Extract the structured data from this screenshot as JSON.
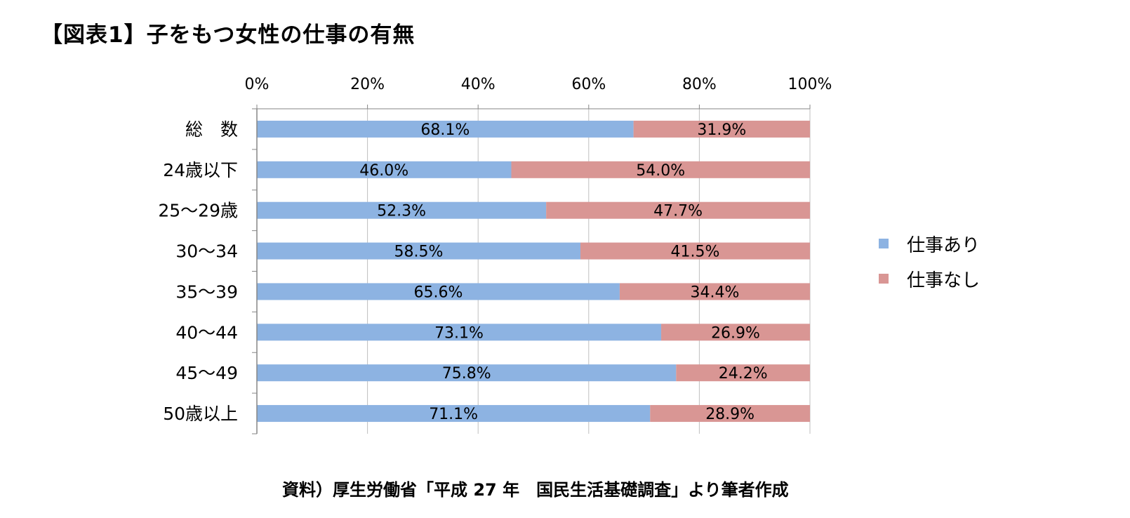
{
  "title": "【図表1】子をもつ女性の仕事の有無",
  "source": "資料）厚生労働省「平成 27 年　国民生活基礎調査」より筆者作成",
  "colors": {
    "with_job": "#8db3e2",
    "without_job": "#d99694",
    "axis": "#868686",
    "grid": "#bfbfbf"
  },
  "chart_data": {
    "type": "bar",
    "orientation": "horizontal",
    "stacked": "percent",
    "categories": [
      "総　数",
      "24歳以下",
      "25～29歳",
      "30～34",
      "35～39",
      "40～44",
      "45～49",
      "50歳以上"
    ],
    "series": [
      {
        "name": "仕事あり",
        "values": [
          68.1,
          46.0,
          52.3,
          58.5,
          65.6,
          73.1,
          75.8,
          71.1
        ],
        "labels": [
          "68.1%",
          "46.0%",
          "52.3%",
          "58.5%",
          "65.6%",
          "73.1%",
          "75.8%",
          "71.1%"
        ]
      },
      {
        "name": "仕事なし",
        "values": [
          31.9,
          54.0,
          47.7,
          41.5,
          34.4,
          26.9,
          24.2,
          28.9
        ],
        "labels": [
          "31.9%",
          "54.0%",
          "47.7%",
          "41.5%",
          "34.4%",
          "26.9%",
          "24.2%",
          "28.9%"
        ]
      }
    ],
    "xticks": [
      "0%",
      "20%",
      "40%",
      "60%",
      "80%",
      "100%"
    ],
    "xlim": [
      0,
      100
    ],
    "x_axis_position": "top",
    "grid": true,
    "legend": "right"
  }
}
